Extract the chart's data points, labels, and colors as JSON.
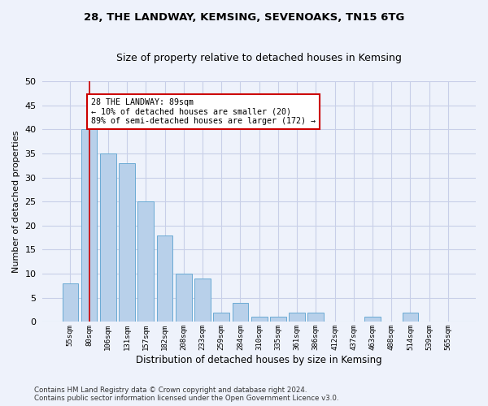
{
  "title1": "28, THE LANDWAY, KEMSING, SEVENOAKS, TN15 6TG",
  "title2": "Size of property relative to detached houses in Kemsing",
  "xlabel": "Distribution of detached houses by size in Kemsing",
  "ylabel": "Number of detached properties",
  "bar_values": [
    8,
    40,
    35,
    33,
    25,
    18,
    10,
    9,
    2,
    4,
    1,
    1,
    2,
    2,
    0,
    0,
    1,
    0,
    2,
    0,
    0
  ],
  "bar_labels": [
    "55sqm",
    "80sqm",
    "106sqm",
    "131sqm",
    "157sqm",
    "182sqm",
    "208sqm",
    "233sqm",
    "259sqm",
    "284sqm",
    "310sqm",
    "335sqm",
    "361sqm",
    "386sqm",
    "412sqm",
    "437sqm",
    "463sqm",
    "488sqm",
    "514sqm",
    "539sqm",
    "565sqm"
  ],
  "bar_color": "#b8d0ea",
  "bar_edge_color": "#6aaad4",
  "vline_x": 1.0,
  "vline_color": "#cc0000",
  "annotation_text": "28 THE LANDWAY: 89sqm\n← 10% of detached houses are smaller (20)\n89% of semi-detached houses are larger (172) →",
  "annotation_box_color": "#ffffff",
  "annotation_border_color": "#cc0000",
  "ylim": [
    0,
    50
  ],
  "yticks": [
    0,
    5,
    10,
    15,
    20,
    25,
    30,
    35,
    40,
    45,
    50
  ],
  "footer_line1": "Contains HM Land Registry data © Crown copyright and database right 2024.",
  "footer_line2": "Contains public sector information licensed under the Open Government Licence v3.0.",
  "background_color": "#eef2fb",
  "grid_color": "#c8cfe8",
  "num_bars": 21,
  "fig_width": 6.0,
  "fig_height": 5.0,
  "fig_dpi": 100
}
